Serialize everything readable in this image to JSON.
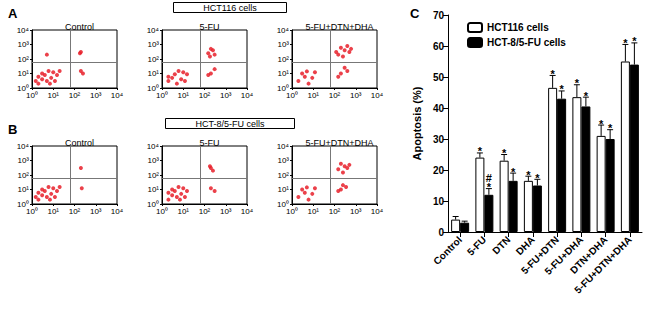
{
  "panels": [
    {
      "letter": "A",
      "title": "HCT116 cells"
    },
    {
      "letter": "B",
      "title": "HCT-8/5-FU cells"
    },
    {
      "letter": "C"
    }
  ],
  "chart_data": [
    {
      "type": "scatter",
      "panel": "A",
      "title": "Control",
      "log": true,
      "color": "#e8202a",
      "xlim": [
        1,
        10000
      ],
      "ylim": [
        1,
        10000
      ],
      "xticks": [
        {
          "value": 1,
          "label": "10⁰"
        },
        {
          "value": 10,
          "label": "10¹"
        },
        {
          "value": 100,
          "label": "10²"
        },
        {
          "value": 1000,
          "label": "10³"
        },
        {
          "value": 10000,
          "label": "10⁴"
        }
      ],
      "yticks": [
        {
          "value": 1,
          "label": "10⁰"
        },
        {
          "value": 10,
          "label": "10¹"
        },
        {
          "value": 100,
          "label": "10²"
        },
        {
          "value": 1000,
          "label": "10³"
        },
        {
          "value": 10000,
          "label": "10⁴"
        }
      ],
      "quadrant": [
        60,
        60
      ],
      "x": [
        2,
        3,
        5,
        4,
        8,
        10,
        6,
        3,
        12,
        15,
        2,
        7,
        20,
        1.5,
        200,
        180,
        250,
        200,
        5
      ],
      "y": [
        2,
        4,
        3,
        8,
        5,
        12,
        15,
        10,
        3,
        8,
        6,
        2,
        15,
        3,
        300,
        250,
        10,
        15,
        200
      ]
    },
    {
      "type": "scatter",
      "panel": "A",
      "title": "5-FU",
      "log": true,
      "color": "#e8202a",
      "xlim": [
        1,
        10000
      ],
      "ylim": [
        1,
        10000
      ],
      "xticks": [
        {
          "value": 1,
          "label": "10⁰"
        },
        {
          "value": 10,
          "label": "10¹"
        },
        {
          "value": 100,
          "label": "10²"
        },
        {
          "value": 1000,
          "label": "10³"
        },
        {
          "value": 10000,
          "label": "10⁴"
        }
      ],
      "yticks": [
        {
          "value": 1,
          "label": "10⁰"
        },
        {
          "value": 10,
          "label": "10¹"
        },
        {
          "value": 100,
          "label": "10²"
        },
        {
          "value": 1000,
          "label": "10³"
        },
        {
          "value": 10000,
          "label": "10⁴"
        }
      ],
      "quadrant": [
        60,
        60
      ],
      "x": [
        2,
        3,
        5,
        4,
        8,
        10,
        6,
        12,
        2,
        15,
        150,
        250,
        300,
        200,
        180,
        200,
        300,
        150
      ],
      "y": [
        3,
        5,
        2,
        9,
        4,
        12,
        15,
        3,
        6,
        9,
        250,
        400,
        200,
        500,
        150,
        10,
        20,
        8
      ]
    },
    {
      "type": "scatter",
      "panel": "A",
      "title": "5-FU+DTN+DHA",
      "log": true,
      "color": "#e8202a",
      "xlim": [
        1,
        10000
      ],
      "ylim": [
        1,
        10000
      ],
      "xticks": [
        {
          "value": 1,
          "label": "10⁰"
        },
        {
          "value": 10,
          "label": "10¹"
        },
        {
          "value": 100,
          "label": "10²"
        },
        {
          "value": 1000,
          "label": "10³"
        },
        {
          "value": 10000,
          "label": "10⁴"
        }
      ],
      "yticks": [
        {
          "value": 1,
          "label": "10⁰"
        },
        {
          "value": 10,
          "label": "10¹"
        },
        {
          "value": 100,
          "label": "10²"
        },
        {
          "value": 1000,
          "label": "10³"
        },
        {
          "value": 10000,
          "label": "10⁴"
        }
      ],
      "quadrant": [
        60,
        60
      ],
      "x": [
        2,
        4,
        6,
        3,
        9,
        12,
        5,
        150,
        300,
        500,
        200,
        400,
        250,
        600,
        120,
        200,
        400,
        300,
        150
      ],
      "y": [
        3,
        6,
        2,
        10,
        5,
        12,
        14,
        200,
        400,
        300,
        600,
        800,
        150,
        500,
        300,
        10,
        15,
        25,
        6
      ]
    },
    {
      "type": "scatter",
      "panel": "B",
      "title": "Control",
      "log": true,
      "color": "#e8202a",
      "xlim": [
        1,
        10000
      ],
      "ylim": [
        1,
        10000
      ],
      "xticks": [
        {
          "value": 1,
          "label": "10⁰"
        },
        {
          "value": 10,
          "label": "10¹"
        },
        {
          "value": 100,
          "label": "10²"
        },
        {
          "value": 1000,
          "label": "10³"
        },
        {
          "value": 10000,
          "label": "10⁴"
        }
      ],
      "yticks": [
        {
          "value": 1,
          "label": "10⁰"
        },
        {
          "value": 10,
          "label": "10¹"
        },
        {
          "value": 100,
          "label": "10²"
        },
        {
          "value": 1000,
          "label": "10³"
        },
        {
          "value": 10000,
          "label": "10⁴"
        }
      ],
      "quadrant": [
        60,
        60
      ],
      "x": [
        2,
        3,
        5,
        4,
        8,
        10,
        6,
        3,
        12,
        15,
        2,
        7,
        20,
        1.5,
        200,
        220
      ],
      "y": [
        2,
        4,
        3,
        8,
        5,
        12,
        15,
        10,
        3,
        8,
        6,
        2,
        15,
        3,
        300,
        12
      ]
    },
    {
      "type": "scatter",
      "panel": "B",
      "title": "5-FU",
      "log": true,
      "color": "#e8202a",
      "xlim": [
        1,
        10000
      ],
      "ylim": [
        1,
        10000
      ],
      "xticks": [
        {
          "value": 1,
          "label": "10⁰"
        },
        {
          "value": 10,
          "label": "10¹"
        },
        {
          "value": 100,
          "label": "10²"
        },
        {
          "value": 1000,
          "label": "10³"
        },
        {
          "value": 10000,
          "label": "10⁴"
        }
      ],
      "yticks": [
        {
          "value": 1,
          "label": "10⁰"
        },
        {
          "value": 10,
          "label": "10¹"
        },
        {
          "value": 100,
          "label": "10²"
        },
        {
          "value": 1000,
          "label": "10³"
        },
        {
          "value": 10000,
          "label": "10⁴"
        }
      ],
      "quadrant": [
        60,
        60
      ],
      "x": [
        2,
        3,
        5,
        4,
        8,
        10,
        6,
        3,
        12,
        15,
        2,
        7,
        200,
        250,
        180,
        200,
        300
      ],
      "y": [
        2,
        4,
        3,
        8,
        5,
        12,
        15,
        10,
        3,
        8,
        6,
        2,
        300,
        200,
        400,
        12,
        8
      ]
    },
    {
      "type": "scatter",
      "panel": "B",
      "title": "5-FU+DTN+DHA",
      "log": true,
      "color": "#e8202a",
      "xlim": [
        1,
        10000
      ],
      "ylim": [
        1,
        10000
      ],
      "xticks": [
        {
          "value": 1,
          "label": "10⁰"
        },
        {
          "value": 10,
          "label": "10¹"
        },
        {
          "value": 100,
          "label": "10²"
        },
        {
          "value": 1000,
          "label": "10³"
        },
        {
          "value": 10000,
          "label": "10⁴"
        }
      ],
      "yticks": [
        {
          "value": 1,
          "label": "10⁰"
        },
        {
          "value": 10,
          "label": "10¹"
        },
        {
          "value": 100,
          "label": "10²"
        },
        {
          "value": 1000,
          "label": "10³"
        },
        {
          "value": 10000,
          "label": "10⁴"
        }
      ],
      "quadrant": [
        60,
        60
      ],
      "x": [
        2,
        4,
        6,
        3,
        9,
        12,
        5,
        150,
        300,
        200,
        400,
        250,
        500,
        200,
        350,
        250,
        150
      ],
      "y": [
        3,
        6,
        2,
        10,
        5,
        12,
        14,
        250,
        400,
        600,
        300,
        150,
        500,
        10,
        15,
        20,
        8
      ]
    },
    {
      "type": "bar",
      "panel": "C",
      "ylabel": "Apoptosis (%)",
      "categories": [
        "Control",
        "5-FU",
        "DTN",
        "DHA",
        "5-FU+DTN",
        "5-FU+DHA",
        "DTN+DHA",
        "5-FU+DTN+DHA"
      ],
      "ylim": [
        0,
        70
      ],
      "yticks": [
        0,
        10,
        20,
        30,
        40,
        50,
        60,
        70
      ],
      "grid": false,
      "legend": "upper left",
      "series": [
        {
          "name": "HCT116 cells",
          "color": "#ffffff",
          "values": [
            4,
            24,
            23,
            16.5,
            46.5,
            43.5,
            31,
            55
          ],
          "errors": [
            1,
            1.5,
            2,
            1.5,
            4,
            4,
            3.5,
            5.5
          ],
          "annotations": [
            null,
            [
              "*"
            ],
            [
              "*"
            ],
            [
              "*"
            ],
            [
              "*"
            ],
            [
              "*"
            ],
            [
              "*"
            ],
            [
              "*"
            ]
          ]
        },
        {
          "name": "HCT-8/5-FU cells",
          "color": "#000000",
          "values": [
            3,
            12,
            16.5,
            15,
            43,
            40.5,
            30,
            54
          ],
          "errors": [
            0.5,
            2,
            2.5,
            2,
            2.5,
            3,
            3,
            7
          ],
          "annotations": [
            null,
            [
              "#",
              "*"
            ],
            [
              "*"
            ],
            [
              "*"
            ],
            [
              "*"
            ],
            [
              "*"
            ],
            [
              "*"
            ],
            [
              "*"
            ]
          ]
        }
      ]
    }
  ]
}
